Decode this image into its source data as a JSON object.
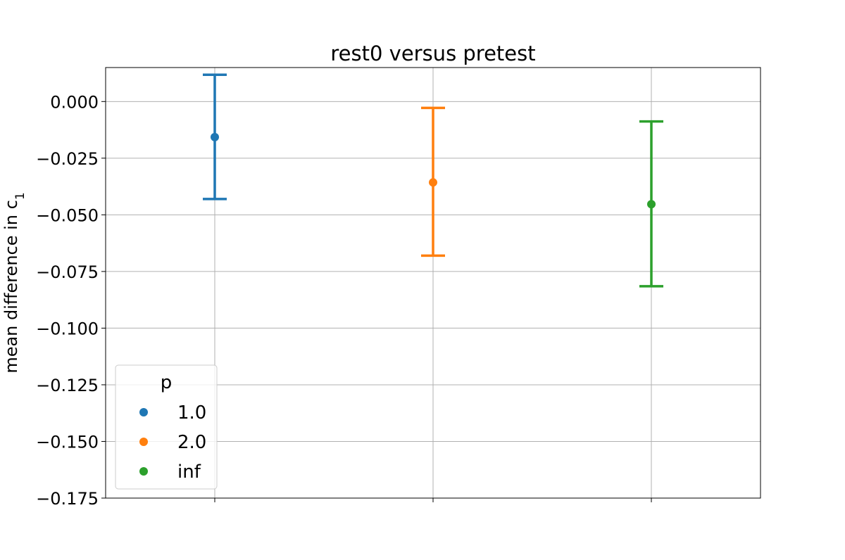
{
  "chart_data": {
    "type": "scatter",
    "title": "rest0 versus pretest",
    "xlabel": "",
    "ylabel": "mean difference in c",
    "ylabel_subscript": "1",
    "ylim": [
      -0.175,
      0.015
    ],
    "yticks": [
      0.0,
      -0.025,
      -0.05,
      -0.075,
      -0.1,
      -0.125,
      -0.15,
      -0.175
    ],
    "ytick_labels": [
      "0.000",
      "−0.025",
      "−0.050",
      "−0.075",
      "−0.100",
      "−0.125",
      "−0.150",
      "−0.175"
    ],
    "grid": true,
    "legend": {
      "title": "p",
      "placement": "lower-left"
    },
    "series": [
      {
        "name": "1.0",
        "color": "#1f77b4",
        "x": 0,
        "y": -0.0157,
        "ci_low": -0.043,
        "ci_high": 0.0118
      },
      {
        "name": "2.0",
        "color": "#ff7f0e",
        "x": 1,
        "y": -0.0357,
        "ci_low": -0.068,
        "ci_high": -0.0028
      },
      {
        "name": "inf",
        "color": "#2ca02c",
        "x": 2,
        "y": -0.0453,
        "ci_low": -0.0815,
        "ci_high": -0.0088
      }
    ]
  }
}
